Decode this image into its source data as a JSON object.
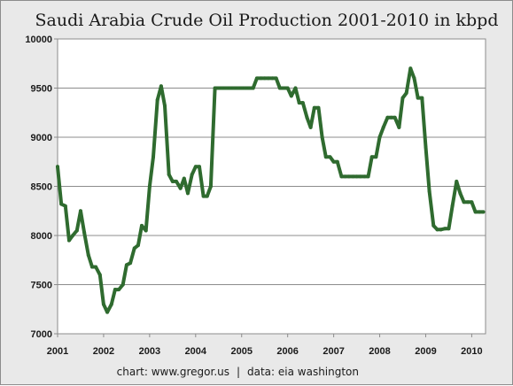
{
  "chart_data": {
    "type": "line",
    "title": "Saudi Arabia Crude Oil Production 2001-2010 in kbpd",
    "xlabel": "",
    "ylabel": "",
    "xlim": [
      2001.0,
      2010.3
    ],
    "ylim": [
      7000,
      10000
    ],
    "y_ticks": [
      7000,
      7500,
      8000,
      8500,
      9000,
      9500,
      10000
    ],
    "x_ticks": [
      "2001",
      "2002",
      "2003",
      "2004",
      "2005",
      "2006",
      "2007",
      "2008",
      "2009",
      "2010"
    ],
    "grid": true,
    "legend": "none",
    "line_color": "#2f6b2f",
    "series": [
      {
        "x": [
          2001.0,
          2001.08,
          2001.17,
          2001.25,
          2001.33,
          2001.42,
          2001.5,
          2001.58,
          2001.67,
          2001.75,
          2001.83,
          2001.92,
          2002.0,
          2002.08,
          2002.17,
          2002.25,
          2002.33,
          2002.42,
          2002.5,
          2002.58,
          2002.67,
          2002.75,
          2002.83,
          2002.92,
          2003.0,
          2003.08,
          2003.17,
          2003.25,
          2003.33,
          2003.42,
          2003.5,
          2003.58,
          2003.67,
          2003.75,
          2003.83,
          2003.92,
          2004.0,
          2004.08,
          2004.17,
          2004.25,
          2004.33,
          2004.42,
          2004.5,
          2004.58,
          2004.67,
          2004.75,
          2004.83,
          2004.92,
          2005.0,
          2005.08,
          2005.17,
          2005.25,
          2005.33,
          2005.42,
          2005.5,
          2005.58,
          2005.67,
          2005.75,
          2005.83,
          2005.92,
          2006.0,
          2006.08,
          2006.17,
          2006.25,
          2006.33,
          2006.42,
          2006.5,
          2006.58,
          2006.67,
          2006.75,
          2006.83,
          2006.92,
          2007.0,
          2007.08,
          2007.17,
          2007.25,
          2007.33,
          2007.42,
          2007.5,
          2007.58,
          2007.67,
          2007.75,
          2007.83,
          2007.92,
          2008.0,
          2008.08,
          2008.17,
          2008.25,
          2008.33,
          2008.42,
          2008.5,
          2008.58,
          2008.67,
          2008.75,
          2008.83,
          2008.92,
          2009.0,
          2009.08,
          2009.17,
          2009.25,
          2009.33,
          2009.42,
          2009.5,
          2009.58,
          2009.67,
          2009.75,
          2009.83,
          2009.92,
          2010.0,
          2010.08,
          2010.17,
          2010.25
        ],
        "y": [
          8700,
          8320,
          8300,
          7950,
          8000,
          8050,
          8250,
          8030,
          7800,
          7680,
          7680,
          7600,
          7300,
          7220,
          7300,
          7450,
          7450,
          7500,
          7700,
          7720,
          7870,
          7900,
          8100,
          8050,
          8500,
          8800,
          9380,
          9520,
          9320,
          8620,
          8550,
          8550,
          8480,
          8580,
          8430,
          8620,
          8700,
          8700,
          8400,
          8400,
          8500,
          9500,
          9500,
          9500,
          9500,
          9500,
          9500,
          9500,
          9500,
          9500,
          9500,
          9500,
          9600,
          9600,
          9600,
          9600,
          9600,
          9600,
          9500,
          9500,
          9500,
          9420,
          9500,
          9350,
          9350,
          9200,
          9100,
          9300,
          9300,
          9000,
          8800,
          8800,
          8750,
          8750,
          8600,
          8600,
          8600,
          8600,
          8600,
          8600,
          8600,
          8600,
          8800,
          8800,
          9000,
          9100,
          9200,
          9200,
          9200,
          9100,
          9400,
          9450,
          9700,
          9600,
          9400,
          9400,
          8900,
          8450,
          8100,
          8060,
          8060,
          8070,
          8070,
          8300,
          8550,
          8430,
          8340,
          8340,
          8340,
          8240,
          8240,
          8240
        ]
      }
    ]
  },
  "footer": {
    "credit": "chart: www.gregor.us",
    "separator": "|",
    "source": "data: eia washington"
  }
}
